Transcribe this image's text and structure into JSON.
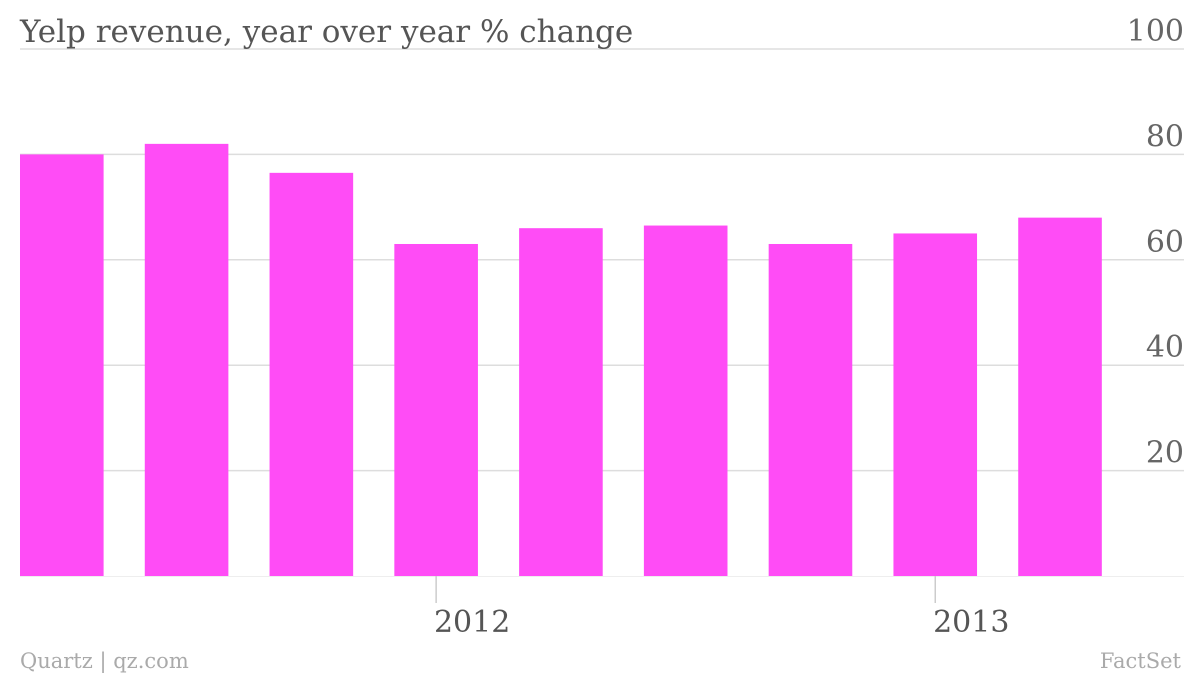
{
  "chart_data": {
    "type": "bar",
    "title": "Yelp revenue, year over year % change",
    "series": [
      {
        "values": [
          80,
          82,
          76.5,
          63,
          66,
          66.5,
          63,
          65,
          68
        ]
      }
    ],
    "x_tick_labels": [
      "2012",
      "2013"
    ],
    "x_tick_positions": [
      3.5,
      7.5
    ],
    "ylim": [
      0,
      100
    ],
    "yticks": [
      20,
      40,
      60,
      80,
      100
    ],
    "y_axis_side": "right",
    "grid": true,
    "colors": {
      "bar": "#ff4cf6",
      "grid": "#dddddd",
      "baseline": "#eeeeee"
    }
  },
  "credit": {
    "source_left": "Quartz | qz.com",
    "source_right": "FactSet"
  }
}
